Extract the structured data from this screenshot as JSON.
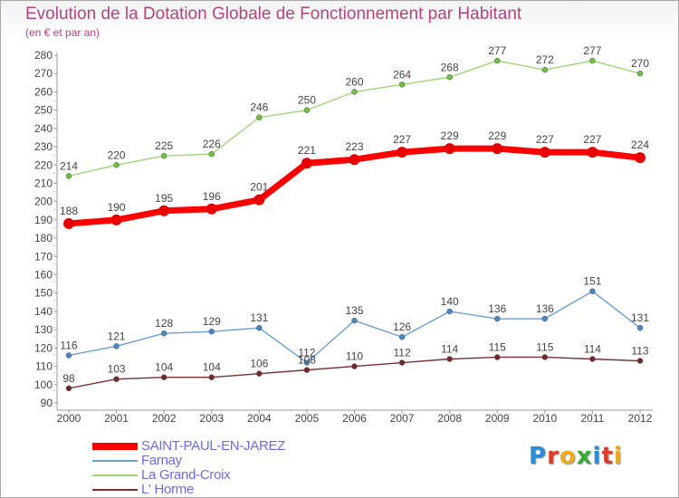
{
  "header": {
    "title": "Evolution de la Dotation Globale de Fonctionnement par Habitant",
    "subtitle": "(en € et par an)"
  },
  "logo": {
    "text": "Proxiti",
    "letter_colors": [
      "#2d8cd8",
      "#e23a2a",
      "#f0a81c",
      "#3aaa3a",
      "#2d8cd8",
      "#e23a2a",
      "#f0a81c"
    ]
  },
  "chart_data": {
    "type": "line",
    "title": "Evolution de la Dotation Globale de Fonctionnement par Habitant",
    "subtitle": "(en € et par an)",
    "x": [
      "2000",
      "2001",
      "2002",
      "2003",
      "2004",
      "2005",
      "2006",
      "2007",
      "2008",
      "2009",
      "2010",
      "2011",
      "2012"
    ],
    "ylim": [
      90,
      280
    ],
    "yticks": [
      90,
      100,
      110,
      120,
      130,
      140,
      150,
      160,
      170,
      180,
      190,
      200,
      210,
      220,
      230,
      240,
      250,
      260,
      270,
      280
    ],
    "grid": false,
    "legend_position": "bottom-left",
    "series": [
      {
        "name": "SAINT-PAUL-EN-JAREZ",
        "color": "#ff0000",
        "marker_color": "#e80000",
        "values": [
          188,
          190,
          195,
          196,
          201,
          221,
          223,
          227,
          229,
          229,
          227,
          227,
          224
        ]
      },
      {
        "name": "Farnay",
        "color": "#6a9fd2",
        "marker_color": "#4a86c8",
        "values": [
          116,
          121,
          128,
          129,
          131,
          112,
          135,
          126,
          140,
          136,
          136,
          151,
          131
        ]
      },
      {
        "name": "La Grand-Croix",
        "color": "#9fd67a",
        "marker_color": "#6cc23e",
        "values": [
          214,
          220,
          225,
          226,
          246,
          250,
          260,
          264,
          268,
          277,
          272,
          277,
          270
        ]
      },
      {
        "name": "L' Horme",
        "color": "#7a3030",
        "marker_color": "#6e2a2a",
        "values": [
          98,
          103,
          104,
          104,
          106,
          108,
          110,
          112,
          114,
          115,
          115,
          114,
          113
        ]
      }
    ]
  }
}
